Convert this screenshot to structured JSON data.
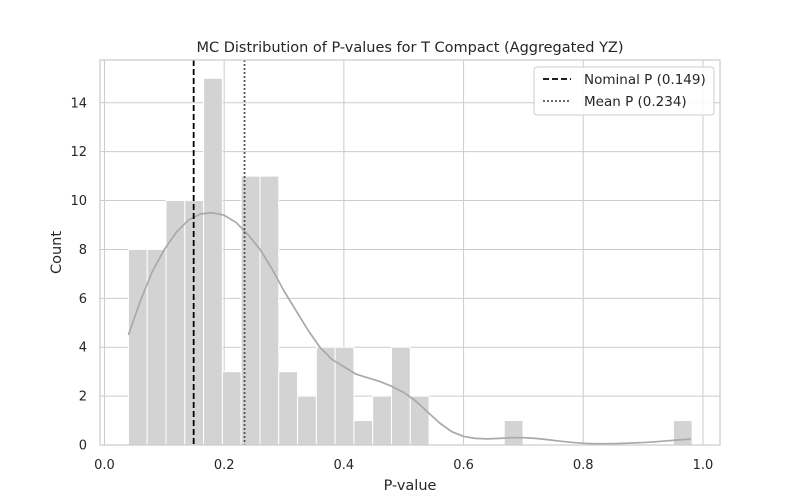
{
  "chart_data": {
    "type": "bar",
    "title": "MC Distribution of P-values for T Compact (Aggregated YZ)",
    "xlabel": "P-value",
    "ylabel": "Count",
    "xlim": [
      -0.0075,
      1.0285
    ],
    "ylim": [
      0,
      15.75
    ],
    "xticks": [
      0.0,
      0.2,
      0.4,
      0.6,
      0.8,
      1.0
    ],
    "xtick_labels": [
      "0.0",
      "0.2",
      "0.4",
      "0.6",
      "0.8",
      "1.0"
    ],
    "yticks": [
      0,
      2,
      4,
      6,
      8,
      10,
      12,
      14
    ],
    "ytick_labels": [
      "0",
      "2",
      "4",
      "6",
      "8",
      "10",
      "12",
      "14"
    ],
    "grid": true,
    "legend_position": "top-right",
    "bins": {
      "start": 0.04,
      "width": 0.0314,
      "counts": [
        8,
        8,
        10,
        10,
        15,
        3,
        11,
        11,
        3,
        2,
        4,
        4,
        1,
        2,
        4,
        2,
        0,
        0,
        0,
        0,
        1,
        0,
        0,
        0,
        0,
        0,
        0,
        0,
        0,
        1
      ]
    },
    "kde": {
      "x": [
        0.04,
        0.06,
        0.08,
        0.1,
        0.12,
        0.14,
        0.16,
        0.18,
        0.2,
        0.22,
        0.24,
        0.26,
        0.28,
        0.3,
        0.32,
        0.34,
        0.36,
        0.38,
        0.4,
        0.42,
        0.44,
        0.46,
        0.48,
        0.5,
        0.52,
        0.54,
        0.56,
        0.58,
        0.6,
        0.62,
        0.64,
        0.66,
        0.68,
        0.7,
        0.72,
        0.74,
        0.76,
        0.78,
        0.8,
        0.82,
        0.84,
        0.86,
        0.88,
        0.9,
        0.92,
        0.94,
        0.96,
        0.98
      ],
      "y": [
        4.5,
        5.9,
        7.1,
        8.0,
        8.7,
        9.2,
        9.45,
        9.5,
        9.4,
        9.1,
        8.6,
        8.0,
        7.2,
        6.3,
        5.5,
        4.7,
        4.0,
        3.5,
        3.2,
        2.9,
        2.75,
        2.6,
        2.4,
        2.15,
        1.8,
        1.35,
        0.9,
        0.55,
        0.35,
        0.27,
        0.25,
        0.27,
        0.3,
        0.3,
        0.27,
        0.22,
        0.16,
        0.11,
        0.07,
        0.05,
        0.05,
        0.06,
        0.08,
        0.1,
        0.13,
        0.17,
        0.21,
        0.24
      ]
    },
    "lines": [
      {
        "name": "Nominal P (0.149)",
        "x": 0.149,
        "style": "dashed",
        "color": "#000000"
      },
      {
        "name": "Mean P (0.234)",
        "x": 0.234,
        "style": "dotted",
        "color": "#555555"
      }
    ],
    "colors": {
      "bar_fill": "#d3d3d3",
      "bar_edge": "#ffffff",
      "kde_line": "#a9a9a9",
      "grid": "#cccccc",
      "axis_spine": "#cccccc"
    }
  }
}
